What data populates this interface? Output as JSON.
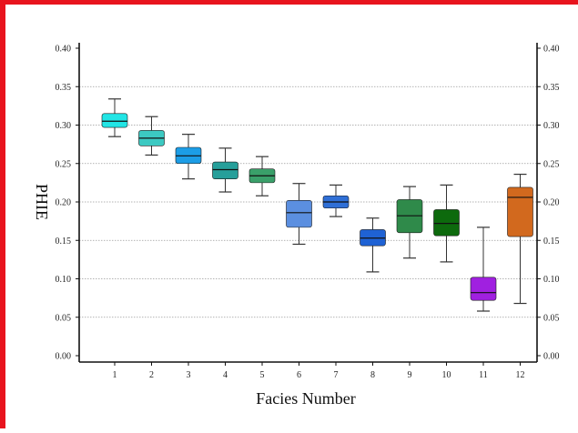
{
  "chart_data": {
    "type": "boxplot",
    "title": "",
    "xlabel": "Facies Number",
    "ylabel": "PHIE",
    "ylim": [
      0.0,
      0.4
    ],
    "yticks": [
      "0.00",
      "0.05",
      "0.10",
      "0.15",
      "0.20",
      "0.25",
      "0.30",
      "0.35",
      "0.40"
    ],
    "right_axis_ticks": true,
    "grid": "horizontal dotted",
    "categories": [
      "1",
      "2",
      "3",
      "4",
      "5",
      "6",
      "7",
      "8",
      "9",
      "10",
      "11",
      "12"
    ],
    "boxes": [
      {
        "category": "1",
        "min": 0.285,
        "q1": 0.297,
        "median": 0.305,
        "q3": 0.315,
        "max": 0.334,
        "color": "#22e5e5"
      },
      {
        "category": "2",
        "min": 0.261,
        "q1": 0.273,
        "median": 0.283,
        "q3": 0.293,
        "max": 0.311,
        "color": "#3cc9c2"
      },
      {
        "category": "3",
        "min": 0.23,
        "q1": 0.25,
        "median": 0.26,
        "q3": 0.271,
        "max": 0.288,
        "color": "#1c9de6"
      },
      {
        "category": "4",
        "min": 0.213,
        "q1": 0.23,
        "median": 0.242,
        "q3": 0.252,
        "max": 0.27,
        "color": "#269f9a"
      },
      {
        "category": "5",
        "min": 0.208,
        "q1": 0.225,
        "median": 0.234,
        "q3": 0.243,
        "max": 0.259,
        "color": "#3aa06a"
      },
      {
        "category": "6",
        "min": 0.145,
        "q1": 0.167,
        "median": 0.186,
        "q3": 0.202,
        "max": 0.224,
        "color": "#5b8fe0"
      },
      {
        "category": "7",
        "min": 0.181,
        "q1": 0.192,
        "median": 0.2,
        "q3": 0.208,
        "max": 0.222,
        "color": "#2f6fd6"
      },
      {
        "category": "8",
        "min": 0.109,
        "q1": 0.143,
        "median": 0.153,
        "q3": 0.164,
        "max": 0.179,
        "color": "#1f62d4"
      },
      {
        "category": "9",
        "min": 0.127,
        "q1": 0.16,
        "median": 0.182,
        "q3": 0.203,
        "max": 0.22,
        "color": "#2f8a4a"
      },
      {
        "category": "10",
        "min": 0.122,
        "q1": 0.156,
        "median": 0.172,
        "q3": 0.19,
        "max": 0.222,
        "color": "#0d6a0d"
      },
      {
        "category": "11",
        "min": 0.058,
        "q1": 0.072,
        "median": 0.082,
        "q3": 0.102,
        "max": 0.167,
        "color": "#a020e0"
      },
      {
        "category": "12",
        "min": 0.068,
        "q1": 0.155,
        "median": 0.206,
        "q3": 0.219,
        "max": 0.236,
        "color": "#d2691e"
      }
    ]
  },
  "colors": {
    "frame_border": "#e8141e",
    "axes": "#111111",
    "grid": "#9a9a9a",
    "whisker": "#333333"
  }
}
